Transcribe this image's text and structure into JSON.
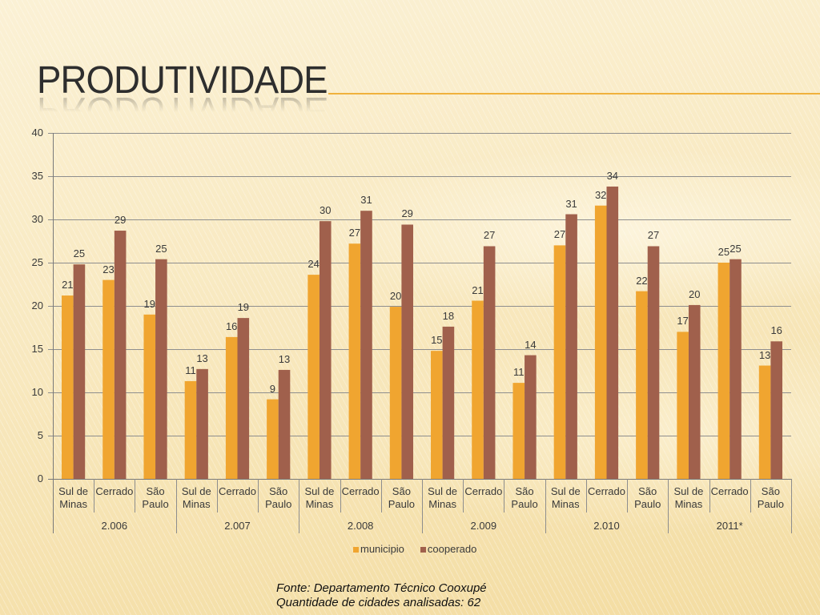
{
  "slide": {
    "title": "PRODUTIVIDADE",
    "footer_source": "Fonte: Departamento Técnico Cooxupé",
    "footer_note": "Quantidade de cidades analisadas: 62"
  },
  "colors": {
    "title_text": "#2E2E2E",
    "title_rule": "#F0B13C"
  },
  "chart_data": {
    "type": "bar",
    "ylim": [
      0,
      40
    ],
    "yticks": [
      0,
      5,
      10,
      15,
      20,
      25,
      30,
      35,
      40
    ],
    "grid": true,
    "legend_position": "bottom",
    "groups": [
      {
        "label": "2.006",
        "categories": [
          "Sul de Minas",
          "Cerrado",
          "São Paulo"
        ]
      },
      {
        "label": "2.007",
        "categories": [
          "Sul de Minas",
          "Cerrado",
          "São Paulo"
        ]
      },
      {
        "label": "2.008",
        "categories": [
          "Sul de Minas",
          "Cerrado",
          "São Paulo"
        ]
      },
      {
        "label": "2.009",
        "categories": [
          "Sul de Minas",
          "Cerrado",
          "São Paulo"
        ]
      },
      {
        "label": "2.010",
        "categories": [
          "Sul de Minas",
          "Cerrado",
          "São Paulo"
        ]
      },
      {
        "label": "2011*",
        "categories": [
          "Sul de Minas",
          "Cerrado",
          "São Paulo"
        ]
      }
    ],
    "series": [
      {
        "name": "municipio",
        "color": "#F0A530",
        "values": [
          21.2,
          23.0,
          19.0,
          11.3,
          16.4,
          9.2,
          23.6,
          27.2,
          19.9,
          14.8,
          20.6,
          11.1,
          27.0,
          31.6,
          21.7,
          17.0,
          25.0,
          13.1
        ],
        "labels": [
          "21",
          "23",
          "19",
          "11",
          "16",
          "9",
          "24",
          "27",
          "20",
          "15",
          "21",
          "11",
          "27",
          "32",
          "22",
          "17",
          "25",
          "13"
        ]
      },
      {
        "name": "cooperado",
        "color": "#A0604C",
        "values": [
          24.8,
          28.7,
          25.4,
          12.7,
          18.6,
          12.6,
          29.8,
          31.0,
          29.4,
          17.6,
          26.9,
          14.3,
          30.6,
          33.8,
          26.9,
          20.1,
          25.4,
          15.9
        ],
        "labels": [
          "25",
          "29",
          "25",
          "13",
          "19",
          "13",
          "30",
          "31",
          "29",
          "18",
          "27",
          "14",
          "31",
          "34",
          "27",
          "20",
          "25",
          "16"
        ]
      }
    ]
  }
}
